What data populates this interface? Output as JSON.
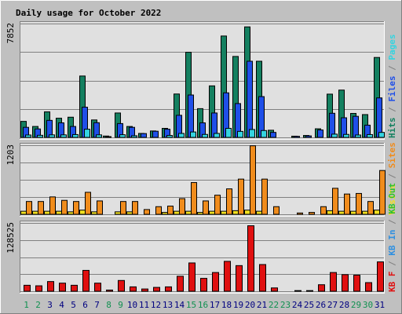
{
  "title": "Daily usage for October 2022",
  "colors": {
    "background": "#c0c0c0",
    "frame_bg": "#e0e0e0",
    "hits": "#148060",
    "files": "#1f4fe8",
    "pages": "#34d4e0",
    "visits": "#f0e020",
    "sites": "#f08c1c",
    "kbin": "#3090e0",
    "kbout": "#30c030",
    "kbf": "#e01010",
    "title": "#0000a0",
    "weekday_label": "#000080",
    "weekend_label": "#109050"
  },
  "chart_data": [
    {
      "type": "bar",
      "name": "hits-files-pages",
      "ytick_label": "7852",
      "ylim": [
        0,
        7852
      ],
      "legend": [
        {
          "label": "Hits",
          "color_key": "hits"
        },
        {
          "label": "/",
          "color_key": "sep"
        },
        {
          "label": "Files",
          "color_key": "files"
        },
        {
          "label": "/",
          "color_key": "sep"
        },
        {
          "label": "Pages",
          "color_key": "pages"
        }
      ],
      "series": [
        {
          "name": "Hits",
          "color_key": "hits",
          "values": [
            1130,
            780,
            1790,
            1350,
            1420,
            4260,
            1230,
            120,
            1710,
            780,
            300,
            470,
            650,
            3020,
            5900,
            2010,
            3580,
            7020,
            5610,
            7650,
            5280,
            520,
            0,
            110,
            160,
            620,
            3010,
            3290,
            1680,
            1600,
            5540
          ]
        },
        {
          "name": "Files",
          "color_key": "files",
          "values": [
            720,
            610,
            1200,
            1030,
            780,
            2110,
            1040,
            80,
            980,
            720,
            290,
            450,
            590,
            1550,
            2950,
            1030,
            1710,
            3100,
            2360,
            5280,
            2840,
            370,
            0,
            100,
            130,
            540,
            1690,
            1380,
            1480,
            870,
            2750
          ]
        },
        {
          "name": "Pages",
          "color_key": "pages",
          "values": [
            190,
            170,
            200,
            200,
            220,
            590,
            200,
            0,
            210,
            140,
            0,
            0,
            160,
            300,
            400,
            230,
            300,
            650,
            440,
            570,
            500,
            0,
            0,
            0,
            0,
            0,
            250,
            230,
            190,
            220,
            370
          ]
        }
      ]
    },
    {
      "type": "bar",
      "name": "visits-sites",
      "ytick_label": "1203",
      "ylim": [
        0,
        1203
      ],
      "legend": [
        {
          "label": "Visits",
          "color_key": "visits"
        },
        {
          "label": "/",
          "color_key": "sep"
        },
        {
          "label": "Sites",
          "color_key": "sites"
        }
      ],
      "series": [
        {
          "name": "Visits",
          "color_key": "visits",
          "values": [
            60,
            60,
            60,
            60,
            50,
            80,
            50,
            0,
            50,
            50,
            0,
            0,
            40,
            60,
            60,
            40,
            60,
            60,
            70,
            80,
            60,
            0,
            0,
            0,
            0,
            0,
            70,
            60,
            60,
            60,
            80
          ]
        },
        {
          "name": "Sites",
          "color_key": "sites",
          "values": [
            230,
            230,
            310,
            250,
            230,
            390,
            240,
            0,
            230,
            230,
            90,
            140,
            150,
            280,
            560,
            240,
            340,
            450,
            620,
            1200,
            620,
            140,
            0,
            30,
            40,
            140,
            460,
            360,
            370,
            230,
            770
          ]
        }
      ]
    },
    {
      "type": "bar",
      "name": "kbf-kbin-kbout",
      "ytick_label": "128525",
      "ylim": [
        0,
        128525
      ],
      "legend": [
        {
          "label": "KB F",
          "color_key": "kbf"
        },
        {
          "label": "/",
          "color_key": "sep"
        },
        {
          "label": "KB In",
          "color_key": "kbin"
        },
        {
          "label": "/",
          "color_key": "sep"
        },
        {
          "label": "KB Out",
          "color_key": "kbout"
        }
      ],
      "series": [
        {
          "name": "KB F",
          "color_key": "kbf",
          "values": [
            12000,
            11000,
            19000,
            16000,
            12000,
            40000,
            16000,
            3000,
            21000,
            9000,
            5000,
            8000,
            9000,
            29000,
            54000,
            25000,
            36000,
            57000,
            49000,
            124000,
            51000,
            7000,
            0,
            2000,
            2000,
            13000,
            36000,
            32000,
            31000,
            17000,
            56000
          ]
        }
      ]
    }
  ],
  "x_axis": {
    "days": [
      "1",
      "2",
      "3",
      "4",
      "5",
      "6",
      "7",
      "8",
      "9",
      "10",
      "11",
      "12",
      "13",
      "14",
      "15",
      "16",
      "17",
      "18",
      "19",
      "20",
      "21",
      "22",
      "23",
      "24",
      "25",
      "26",
      "27",
      "28",
      "29",
      "30",
      "31"
    ],
    "weekend_days": [
      "1",
      "2",
      "8",
      "9",
      "15",
      "16",
      "22",
      "23",
      "29",
      "30"
    ]
  }
}
